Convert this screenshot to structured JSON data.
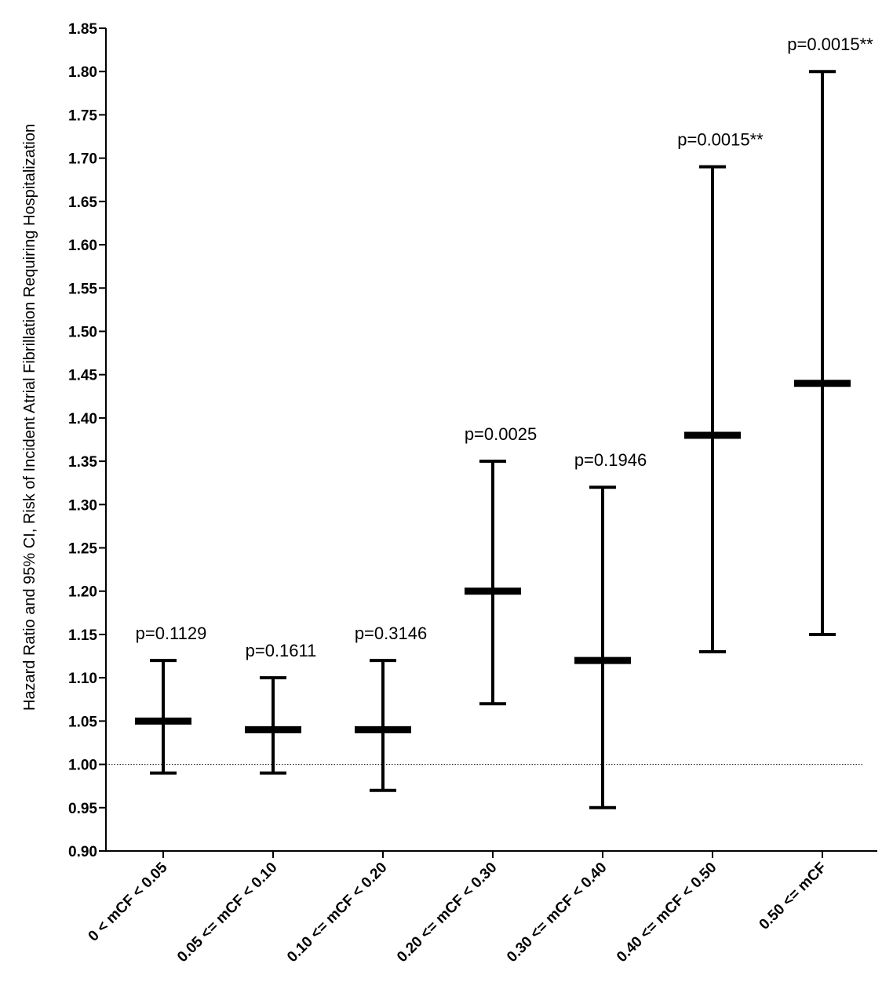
{
  "chart_data": {
    "type": "errorbar",
    "title": "",
    "ylabel": "Hazard Ratio and 95% CI, Risk of Incident Atrial Fibrillation Requiring Hospitalization",
    "xlabel": "",
    "ylim": [
      0.9,
      1.85
    ],
    "yticks": [
      "0.90",
      "0.95",
      "1.00",
      "1.05",
      "1.10",
      "1.15",
      "1.20",
      "1.25",
      "1.30",
      "1.35",
      "1.40",
      "1.45",
      "1.50",
      "1.55",
      "1.60",
      "1.65",
      "1.70",
      "1.75",
      "1.80",
      "1.85"
    ],
    "reference_line": 1.0,
    "grid": false,
    "colors": {
      "marks": "#000000",
      "reference": "#000000"
    },
    "categories": [
      "0 < mCF < 0.05",
      "0.05 <= mCF < 0.10",
      "0.10 <= mCF < 0.20",
      "0.20 <= mCF < 0.30",
      "0.30 <= mCF < 0.40",
      "0.40 <= mCF < 0.50",
      "0.50 <= mCF"
    ],
    "hr": [
      1.05,
      1.04,
      1.04,
      1.2,
      1.12,
      1.38,
      1.44
    ],
    "ci_lower": [
      0.99,
      0.99,
      0.97,
      1.07,
      0.95,
      1.13,
      1.15
    ],
    "ci_upper": [
      1.12,
      1.1,
      1.12,
      1.35,
      1.32,
      1.69,
      1.8
    ],
    "p_values": [
      "p=0.1129",
      "p=0.1611",
      "p=0.3146",
      "p=0.0025",
      "p=0.1946",
      "p=0.0015**",
      "p=0.0015**"
    ]
  }
}
